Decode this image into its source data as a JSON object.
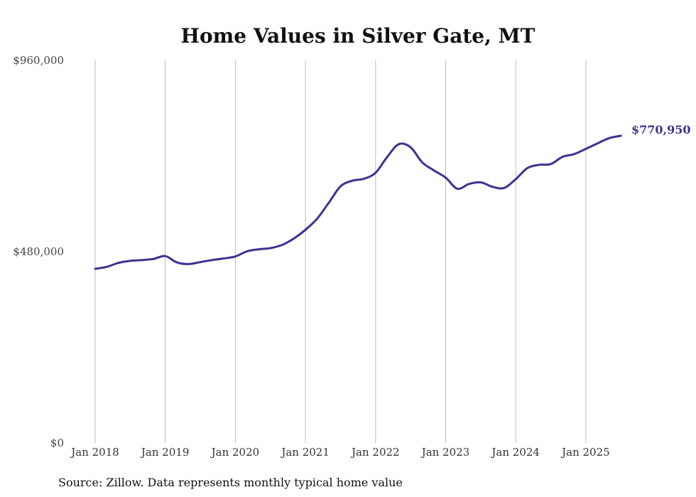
{
  "chart_data": {
    "type": "line",
    "title": "Home Values in Silver Gate, MT",
    "xlabel": "",
    "ylabel": "",
    "ylim": [
      0,
      960000
    ],
    "y_ticks": [
      "$0",
      "$480,000",
      "$960,000"
    ],
    "y_tick_values": [
      0,
      480000,
      960000
    ],
    "x_ticks": [
      "Jan 2018",
      "Jan 2019",
      "Jan 2020",
      "Jan 2021",
      "Jan 2022",
      "Jan 2023",
      "Jan 2024",
      "Jan 2025"
    ],
    "x_tick_values": [
      "2018-01",
      "2019-01",
      "2020-01",
      "2021-01",
      "2022-01",
      "2023-01",
      "2024-01",
      "2025-01"
    ],
    "grid": "vertical lines at x ticks",
    "line_color": "#3d3191",
    "end_label": "$770,950",
    "series": [
      {
        "x": [
          "2018-01",
          "2018-03",
          "2018-05",
          "2018-07",
          "2018-09",
          "2018-11",
          "2019-01",
          "2019-03",
          "2019-05",
          "2019-07",
          "2019-09",
          "2019-11",
          "2020-01",
          "2020-03",
          "2020-05",
          "2020-07",
          "2020-09",
          "2020-11",
          "2021-01",
          "2021-03",
          "2021-05",
          "2021-07",
          "2021-09",
          "2021-11",
          "2022-01",
          "2022-03",
          "2022-05",
          "2022-07",
          "2022-09",
          "2022-11",
          "2023-01",
          "2023-03",
          "2023-05",
          "2023-07",
          "2023-09",
          "2023-11",
          "2024-01",
          "2024-03",
          "2024-05",
          "2024-07",
          "2024-09",
          "2024-11",
          "2025-01",
          "2025-03",
          "2025-05",
          "2025-07"
        ],
        "values": [
          437000,
          442000,
          452000,
          457000,
          459000,
          462000,
          469000,
          453000,
          449000,
          454000,
          459000,
          463000,
          468000,
          481000,
          486000,
          489000,
          497000,
          513000,
          535000,
          563000,
          603000,
          644000,
          658000,
          663000,
          678000,
          718000,
          750000,
          742000,
          704000,
          684000,
          666000,
          638000,
          650000,
          654000,
          643000,
          640000,
          662000,
          690000,
          698000,
          700000,
          718000,
          725000,
          738000,
          752000,
          765000,
          770950
        ]
      }
    ]
  },
  "footer": {
    "source": "Source: Zillow. Data represents monthly typical home value"
  }
}
